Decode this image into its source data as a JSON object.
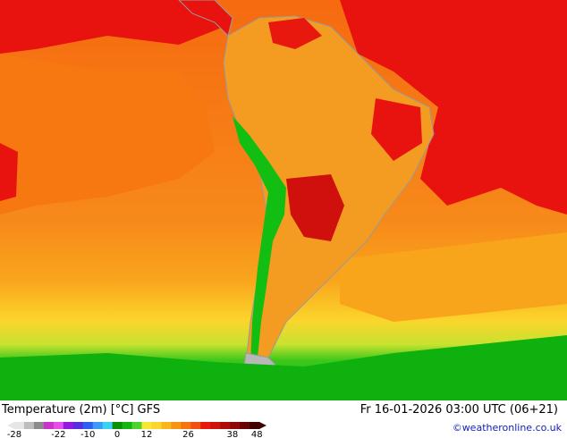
{
  "map": {
    "title": "Temperature (2m) [°C] GFS",
    "datetime": "Fr 16-01-2026 03:00 UTC (06+21)",
    "credit": "©weatheronline.co.uk",
    "colors": {
      "ocean_hot": "#e8120f",
      "ocean_warm": "#f77710",
      "ocean_mild": "#f9a51c",
      "cool": "#fbd52b",
      "cold": "#12be12",
      "deep_cold": "#0a9e0a",
      "land_hot": "#f39c21",
      "border": "#9a9a9a"
    },
    "legend": {
      "ticks": [
        "-28",
        "-22",
        "-10",
        "0",
        "12",
        "26",
        "38",
        "48"
      ],
      "colors": [
        "#e6e6e6",
        "#bdbdbd",
        "#8c8c8c",
        "#cc33cc",
        "#e64ce6",
        "#8f1be0",
        "#5a2de0",
        "#2e5ff2",
        "#3a9af5",
        "#3ad0f5",
        "#0a8f0a",
        "#12b512",
        "#4fd22a",
        "#f6e830",
        "#fbd52b",
        "#f9b61c",
        "#f79410",
        "#f47410",
        "#f25010",
        "#e8180f",
        "#d0100c",
        "#b00a08",
        "#8e0606",
        "#6a0404",
        "#3e0202"
      ]
    }
  }
}
